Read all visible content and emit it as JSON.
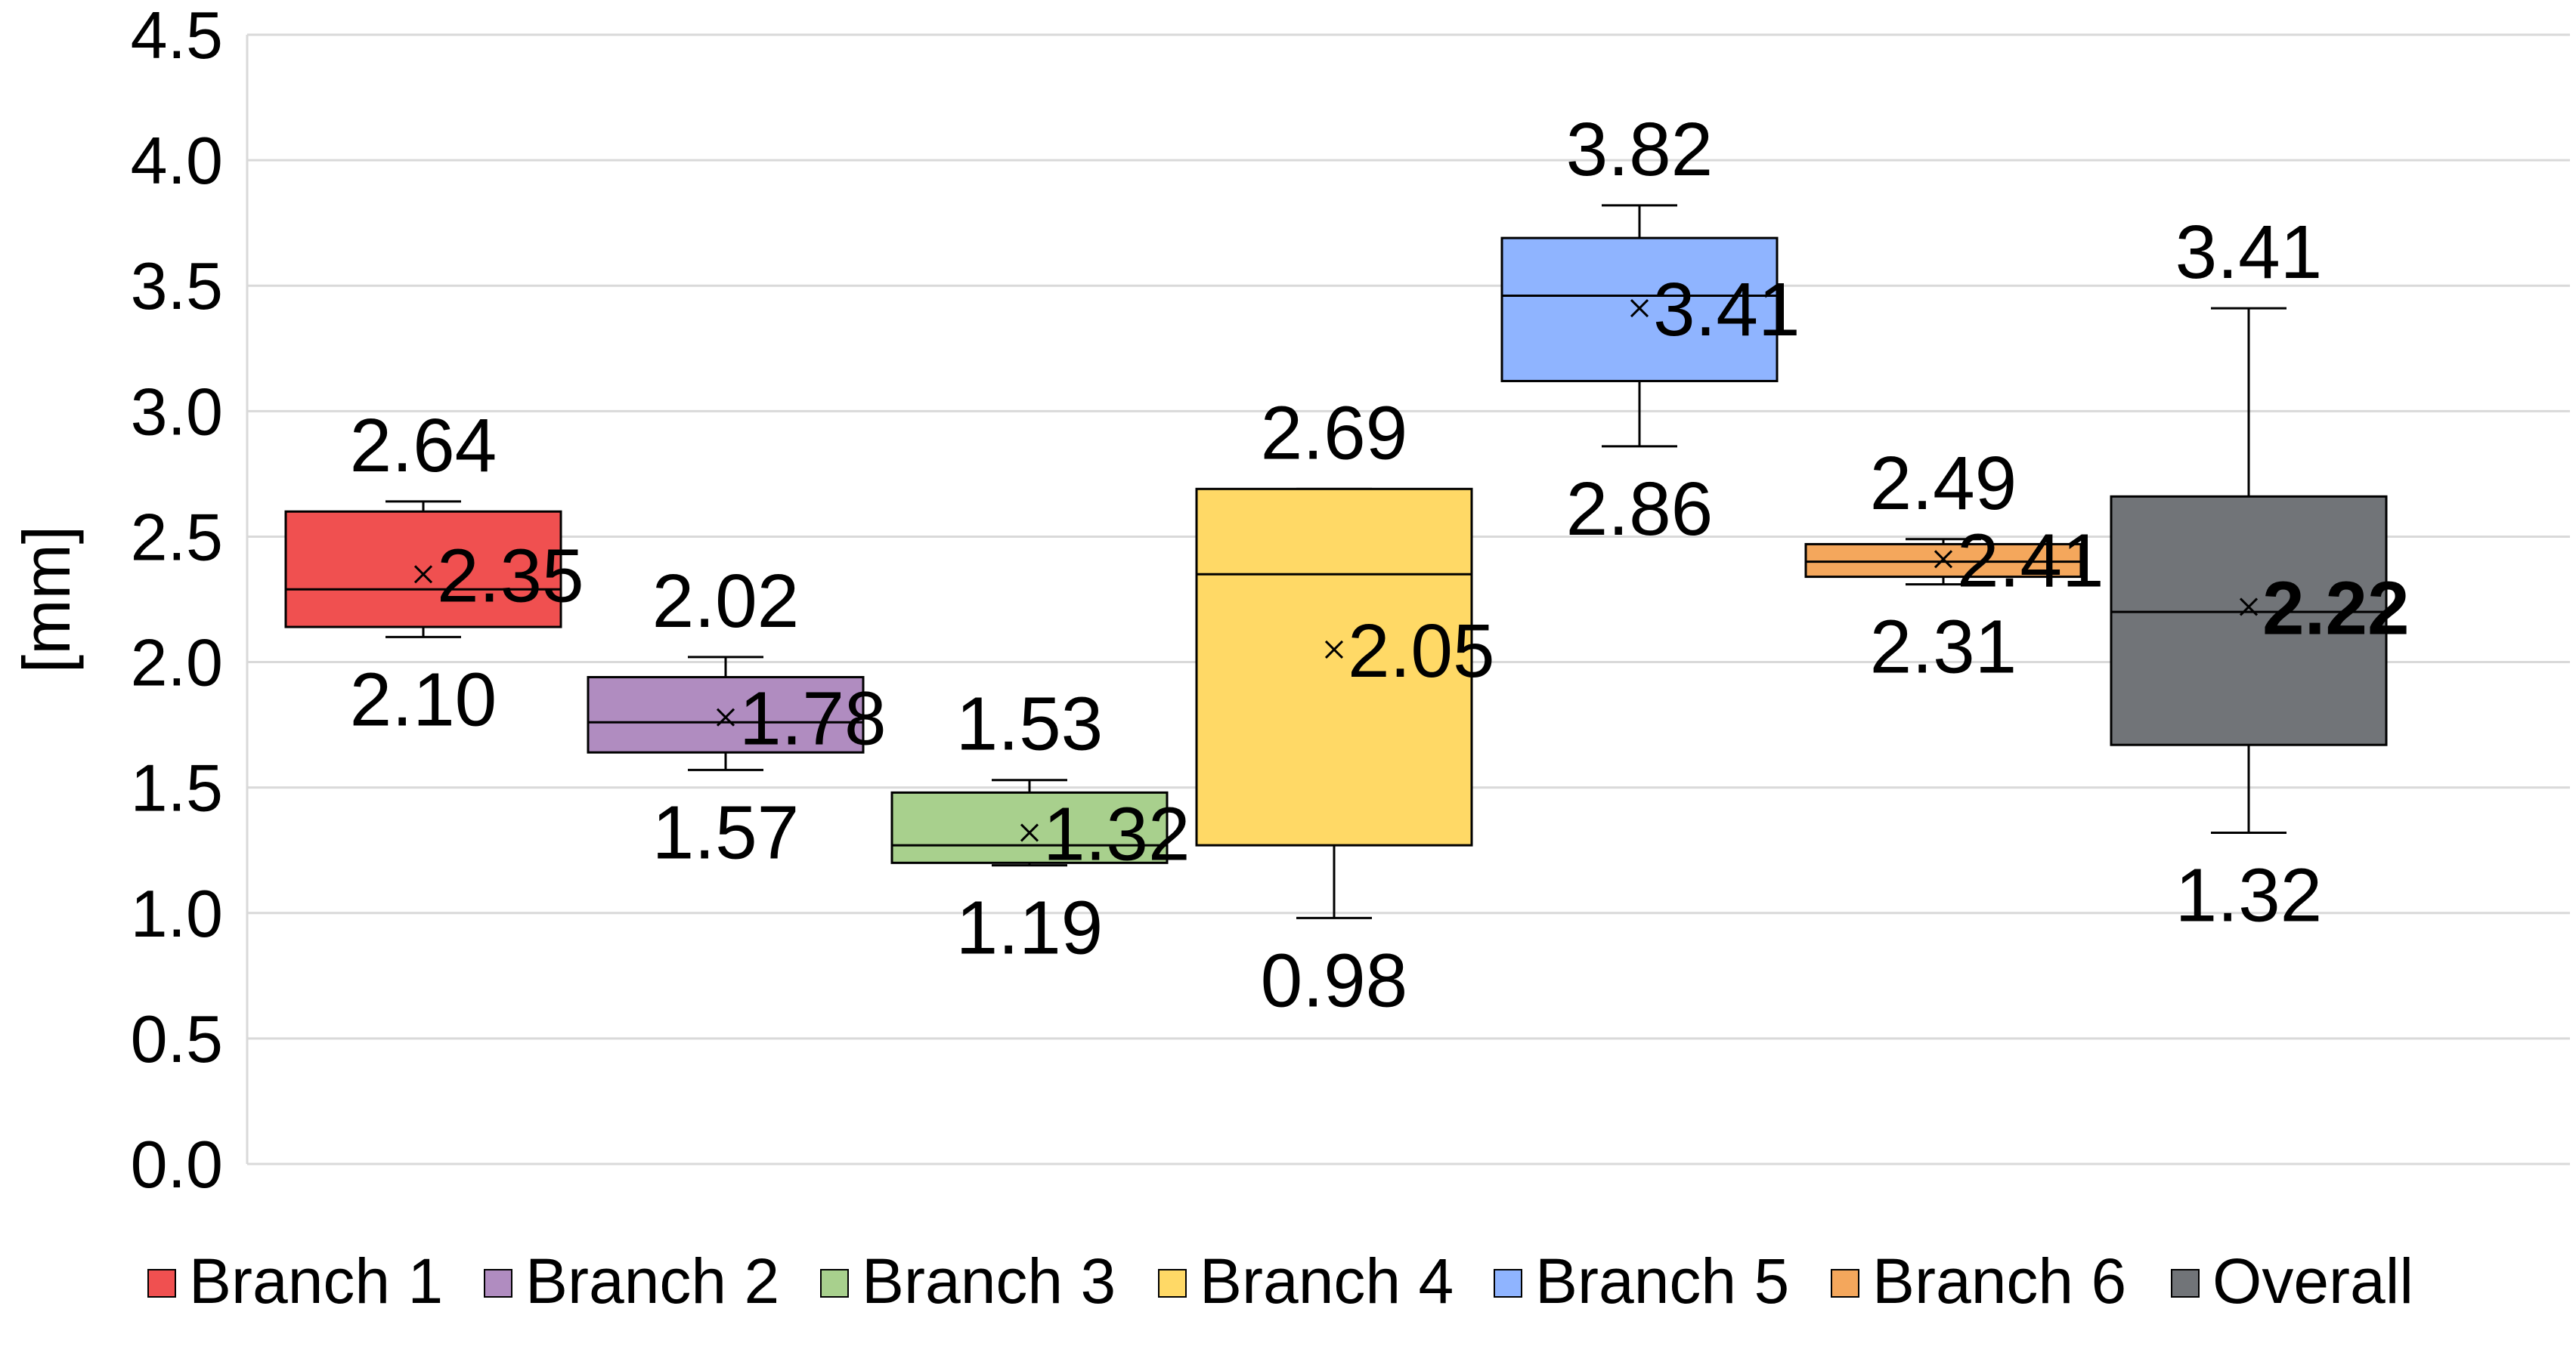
{
  "chart_data": {
    "type": "box",
    "xlabel": "",
    "ylabel": "[mm]",
    "ylim": [
      0,
      4.5
    ],
    "ytick_step": 0.5,
    "yticks": [
      "0.0",
      "0.5",
      "1.0",
      "1.5",
      "2.0",
      "2.5",
      "3.0",
      "3.5",
      "4.0",
      "4.5"
    ],
    "grid": true,
    "legend_position": "bottom",
    "series": [
      {
        "name": "Branch 1",
        "color": "#f05050",
        "whisker_low": 2.1,
        "q1": 2.14,
        "median": 2.29,
        "q3": 2.6,
        "whisker_high": 2.64,
        "mean": 2.35,
        "labels": {
          "max": "2.64",
          "min": "2.10",
          "mean": "2.35"
        }
      },
      {
        "name": "Branch 2",
        "color": "#b08cc0",
        "whisker_low": 1.57,
        "q1": 1.64,
        "median": 1.76,
        "q3": 1.94,
        "whisker_high": 2.02,
        "mean": 1.78,
        "labels": {
          "max": "2.02",
          "min": "1.57",
          "mean": "1.78"
        }
      },
      {
        "name": "Branch 3",
        "color": "#a8d08d",
        "whisker_low": 1.19,
        "q1": 1.2,
        "median": 1.27,
        "q3": 1.48,
        "whisker_high": 1.53,
        "mean": 1.32,
        "labels": {
          "max": "1.53",
          "min": "1.19",
          "mean": "1.32"
        }
      },
      {
        "name": "Branch 4",
        "color": "#ffd966",
        "whisker_low": 0.98,
        "q1": 1.27,
        "median": 2.35,
        "q3": 2.69,
        "whisker_high": 2.69,
        "mean": 2.05,
        "labels": {
          "max": "2.69",
          "min": "0.98",
          "mean": "2.05"
        }
      },
      {
        "name": "Branch 5",
        "color": "#8fb4ff",
        "whisker_low": 2.86,
        "q1": 3.12,
        "median": 3.46,
        "q3": 3.69,
        "whisker_high": 3.82,
        "mean": 3.41,
        "labels": {
          "max": "3.82",
          "min": "2.86",
          "mean": "3.41"
        }
      },
      {
        "name": "Branch 6",
        "color": "#f4a75c",
        "whisker_low": 2.31,
        "q1": 2.34,
        "median": 2.4,
        "q3": 2.47,
        "whisker_high": 2.49,
        "mean": 2.41,
        "labels": {
          "max": "2.49",
          "min": "2.31",
          "mean": "2.41"
        }
      },
      {
        "name": "Overall",
        "color": "#717478",
        "whisker_low": 1.32,
        "q1": 1.67,
        "median": 2.2,
        "q3": 2.66,
        "whisker_high": 3.41,
        "mean": 2.22,
        "labels": {
          "max": "3.41",
          "min": "1.32",
          "mean": "2.22"
        },
        "bold_mean_label": true
      }
    ]
  }
}
